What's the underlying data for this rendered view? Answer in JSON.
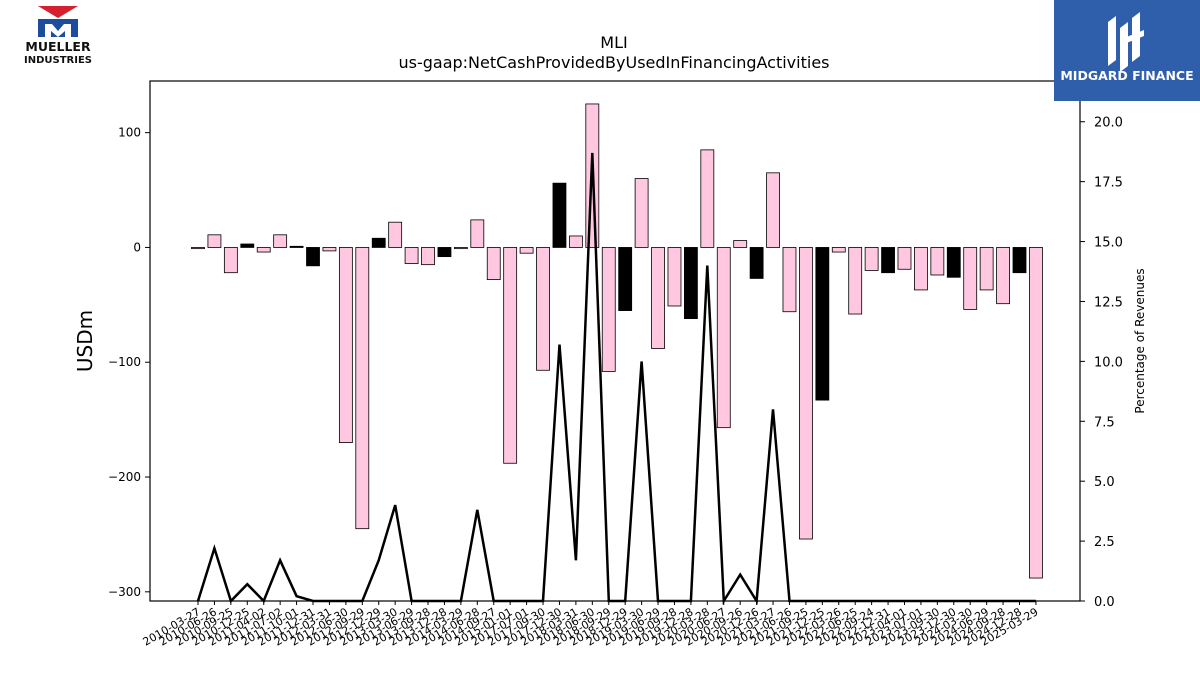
{
  "brand_left": {
    "line1": "MUELLER",
    "line2": "INDUSTRIES"
  },
  "brand_right": {
    "name": "MIDGARD FINANCE"
  },
  "chart_data": {
    "type": "bar",
    "title": "MLI",
    "subtitle": "us-gaap:NetCashProvidedByUsedInFinancingActivities",
    "ylabel": "USDm",
    "y2label": "Percentage of Revenues",
    "ylim": [
      -308,
      145
    ],
    "y2lim": [
      0,
      21.7
    ],
    "yticks": [
      100,
      0,
      -100,
      -200,
      -300
    ],
    "y2ticks": [
      "0.0",
      "2.5",
      "5.0",
      "7.5",
      "10.0",
      "12.5",
      "15.0",
      "17.5",
      "20.0"
    ],
    "colors": {
      "positive_change": "#ffc8e0",
      "negative_change": "#000000",
      "line": "#000000"
    },
    "categories": [
      "2010-03-27",
      "2010-06-26",
      "2010-09-25",
      "2010-12-25",
      "2011-04-02",
      "2011-07-02",
      "2011-10-01",
      "2011-12-31",
      "2012-03-31",
      "2012-06-30",
      "2012-09-29",
      "2012-12-29",
      "2013-03-30",
      "2013-06-29",
      "2013-09-28",
      "2013-12-28",
      "2014-03-29",
      "2014-06-28",
      "2014-09-27",
      "2015-01-01",
      "2017-07-01",
      "2017-09-30",
      "2017-12-30",
      "2018-03-31",
      "2018-06-30",
      "2018-09-29",
      "2018-12-29",
      "2019-03-30",
      "2019-06-29",
      "2019-09-28",
      "2019-12-28",
      "2020-03-28",
      "2020-06-27",
      "2020-09-26",
      "2020-12-26",
      "2021-03-27",
      "2021-06-26",
      "2021-09-25",
      "2021-12-25",
      "2022-03-26",
      "2022-06-25",
      "2022-09-24",
      "2022-12-31",
      "2023-04-01",
      "2023-07-01",
      "2023-09-30",
      "2023-12-30",
      "2024-03-30",
      "2024-06-29",
      "2024-09-28",
      "2024-12-28",
      "2025-03-29"
    ],
    "series": [
      {
        "values": [
          -1,
          11,
          -22,
          3,
          -4,
          11,
          1,
          -16,
          -3,
          -170,
          -245,
          8,
          22,
          -14,
          -15,
          -8,
          -1,
          24,
          -28,
          -188,
          -5,
          -107,
          56,
          10,
          125,
          -108,
          -55,
          60,
          -88,
          -51,
          -62,
          85,
          -157,
          6,
          -27,
          65,
          -56,
          -254,
          -133,
          -4,
          -58,
          -20,
          -22,
          -19,
          -37,
          -24,
          -26,
          -54,
          -37,
          -49,
          -22,
          -288
        ],
        "highlight": [
          false,
          false,
          false,
          true,
          false,
          false,
          true,
          true,
          false,
          false,
          false,
          true,
          false,
          false,
          false,
          true,
          false,
          false,
          false,
          false,
          false,
          false,
          true,
          false,
          false,
          false,
          true,
          false,
          false,
          false,
          true,
          false,
          false,
          false,
          true,
          false,
          false,
          false,
          true,
          false,
          false,
          false,
          true,
          false,
          false,
          false,
          true,
          false,
          false,
          false,
          true,
          false
        ]
      },
      {
        "values": [
          0.0,
          2.2,
          0.0,
          0.7,
          0.0,
          1.7,
          0.2,
          0.0,
          0.0,
          0.0,
          0.0,
          1.7,
          4.0,
          0.0,
          0.0,
          0.0,
          0.0,
          3.8,
          0.0,
          0.0,
          0.0,
          0.0,
          10.7,
          1.7,
          18.7,
          0.0,
          0.0,
          10.0,
          0.0,
          0.0,
          0.0,
          14.0,
          0.0,
          1.1,
          0.0,
          8.0,
          0.0,
          0.0,
          0.0,
          0.0,
          0.0,
          0.0,
          0.0,
          0.0,
          0.0,
          0.0,
          0.0,
          0.0,
          0.0,
          0.0,
          0.0,
          0.0
        ]
      }
    ]
  }
}
